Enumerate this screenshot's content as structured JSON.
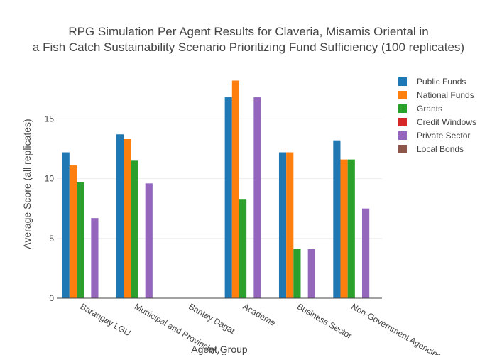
{
  "chart_data": {
    "type": "bar",
    "title_lines": [
      "RPG Simulation Per Agent Results for Claveria, Misamis Oriental in",
      "a Fish Catch Sustainability Scenario Prioritizing Fund Sufficiency (100 replicates)"
    ],
    "xlabel": "Agent Group",
    "ylabel": "Average Score (all replicates)",
    "categories": [
      "Barangay LGU",
      "Municipal and Provincial LGU",
      "Bantay Dagat",
      "Academe",
      "Business Sector",
      "Non-Government Agencies"
    ],
    "ylim": [
      0,
      19
    ],
    "yticks": [
      0,
      5,
      10,
      15
    ],
    "grid": true,
    "legend_position": "top-right",
    "series": [
      {
        "name": "Public Funds",
        "color": "#1f77b4",
        "values": [
          12.2,
          13.7,
          0,
          16.8,
          12.2,
          13.2
        ]
      },
      {
        "name": "National Funds",
        "color": "#ff7f0e",
        "values": [
          11.1,
          13.3,
          0,
          18.2,
          12.2,
          11.6
        ]
      },
      {
        "name": "Grants",
        "color": "#2ca02c",
        "values": [
          9.7,
          11.5,
          0,
          8.3,
          4.1,
          11.6
        ]
      },
      {
        "name": "Credit Windows",
        "color": "#d62728",
        "values": [
          0,
          0,
          0,
          0,
          0,
          0
        ]
      },
      {
        "name": "Private Sector",
        "color": "#9467bd",
        "values": [
          6.7,
          9.6,
          0,
          16.8,
          4.1,
          7.5
        ]
      },
      {
        "name": "Local Bonds",
        "color": "#8c564b",
        "values": [
          0,
          0,
          0,
          0,
          0,
          0
        ]
      }
    ]
  }
}
